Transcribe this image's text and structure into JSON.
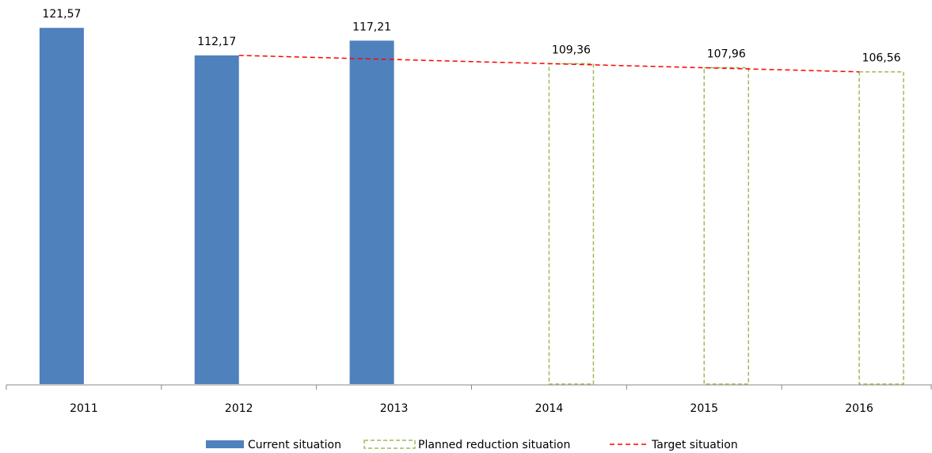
{
  "chart_data": {
    "type": "bar",
    "categories": [
      "2011",
      "2012",
      "2013",
      "2014",
      "2015",
      "2016"
    ],
    "ylim": [
      0,
      130
    ],
    "series": [
      {
        "name": "Current situation",
        "color": "#4f81bd",
        "values": [
          121.57,
          112.17,
          117.21,
          null,
          null,
          null
        ],
        "value_labels": [
          "121,57",
          "112,17",
          "117,21",
          null,
          null,
          null
        ]
      },
      {
        "name": "Planned reduction situation",
        "color": "#9bbb59",
        "style": "dashed-outline",
        "values": [
          null,
          null,
          null,
          109.36,
          107.96,
          106.56
        ],
        "value_labels": [
          null,
          null,
          null,
          "109,36",
          "107,96",
          "106,56"
        ]
      },
      {
        "name": "Target situation",
        "color": "#ff0000",
        "type": "line",
        "style": "dashed",
        "values": [
          null,
          112.17,
          110.77,
          109.36,
          107.96,
          106.56
        ]
      }
    ]
  }
}
